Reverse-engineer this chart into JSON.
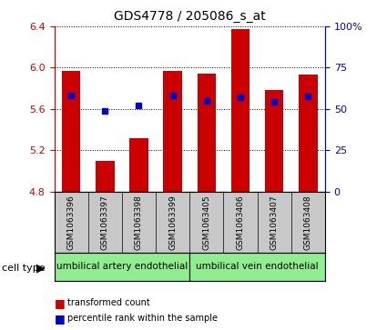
{
  "title": "GDS4778 / 205086_s_at",
  "samples": [
    "GSM1063396",
    "GSM1063397",
    "GSM1063398",
    "GSM1063399",
    "GSM1063405",
    "GSM1063406",
    "GSM1063407",
    "GSM1063408"
  ],
  "red_values": [
    5.97,
    5.1,
    5.32,
    5.97,
    5.94,
    6.37,
    5.78,
    5.93
  ],
  "blue_values": [
    5.73,
    5.58,
    5.63,
    5.73,
    5.68,
    5.71,
    5.67,
    5.72
  ],
  "ylim_left": [
    4.8,
    6.4
  ],
  "ylim_right": [
    0,
    100
  ],
  "yticks_left": [
    4.8,
    5.2,
    5.6,
    6.0,
    6.4
  ],
  "yticks_right": [
    0,
    25,
    50,
    75,
    100
  ],
  "ytick_right_labels": [
    "0",
    "25",
    "50",
    "75",
    "100%"
  ],
  "cell_types": [
    {
      "label": "umbilical artery endothelial",
      "color": "#90EE90"
    },
    {
      "label": "umbilical vein endothelial",
      "color": "#90EE90"
    }
  ],
  "bar_bottom": 4.8,
  "bar_width": 0.55,
  "red_color": "#CC0000",
  "blue_color": "#0000CC",
  "axis_color_left": "#CC0000",
  "axis_color_right": "#0000CC",
  "label_area_color": "#C8C8C8",
  "cell_type_label": "cell type"
}
